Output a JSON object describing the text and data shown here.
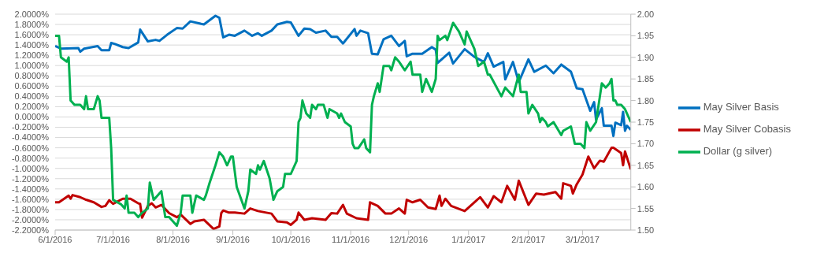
{
  "chart_data": {
    "type": "line",
    "xlim": [
      "2016-06-01",
      "2017-03-26"
    ],
    "xticks": [
      {
        "value": "2016-06-01",
        "label": "6/1/2016"
      },
      {
        "value": "2016-07-01",
        "label": "7/1/2016"
      },
      {
        "value": "2016-08-01",
        "label": "8/1/2016"
      },
      {
        "value": "2016-09-01",
        "label": "9/1/2016"
      },
      {
        "value": "2016-10-01",
        "label": "10/1/2016"
      },
      {
        "value": "2016-11-01",
        "label": "11/1/2016"
      },
      {
        "value": "2016-12-01",
        "label": "12/1/2016"
      },
      {
        "value": "2017-01-01",
        "label": "1/1/2017"
      },
      {
        "value": "2017-02-01",
        "label": "2/1/2017"
      },
      {
        "value": "2017-03-01",
        "label": "3/1/2017"
      }
    ],
    "ylim": [
      -2.2,
      2.0
    ],
    "yticks": [
      {
        "value": -2.2,
        "label": "-2.2000%"
      },
      {
        "value": -2.0,
        "label": "-2.0000%"
      },
      {
        "value": -1.8,
        "label": "-1.8000%"
      },
      {
        "value": -1.6,
        "label": "-1.6000%"
      },
      {
        "value": -1.4,
        "label": "-1.4000%"
      },
      {
        "value": -1.2,
        "label": "-1.2000%"
      },
      {
        "value": -1.0,
        "label": "-1.0000%"
      },
      {
        "value": -0.8,
        "label": "-0.8000%"
      },
      {
        "value": -0.6,
        "label": "-0.6000%"
      },
      {
        "value": -0.4,
        "label": "-0.4000%"
      },
      {
        "value": -0.2,
        "label": "-0.2000%"
      },
      {
        "value": 0,
        "label": "0.0000%"
      },
      {
        "value": 0.2,
        "label": "0.2000%"
      },
      {
        "value": 0.4,
        "label": "0.4000%"
      },
      {
        "value": 0.6,
        "label": "0.6000%"
      },
      {
        "value": 0.8,
        "label": "0.8000%"
      },
      {
        "value": 1.0,
        "label": "1.0000%"
      },
      {
        "value": 1.2,
        "label": "1.2000%"
      },
      {
        "value": 1.4,
        "label": "1.4000%"
      },
      {
        "value": 1.6,
        "label": "1.6000%"
      },
      {
        "value": 1.8,
        "label": "1.8000%"
      },
      {
        "value": 2.0,
        "label": "2.0000%"
      }
    ],
    "y2lim": [
      1.5,
      2.0
    ],
    "y2ticks": [
      {
        "value": 1.5,
        "label": "1.50"
      },
      {
        "value": 1.55,
        "label": "1.55"
      },
      {
        "value": 1.6,
        "label": "1.60"
      },
      {
        "value": 1.65,
        "label": "1.65"
      },
      {
        "value": 1.7,
        "label": "1.70"
      },
      {
        "value": 1.75,
        "label": "1.75"
      },
      {
        "value": 1.8,
        "label": "1.80"
      },
      {
        "value": 1.85,
        "label": "1.85"
      },
      {
        "value": 1.9,
        "label": "1.90"
      },
      {
        "value": 1.95,
        "label": "1.95"
      },
      {
        "value": 2.0,
        "label": "2.00"
      }
    ],
    "grid": "y",
    "legend": "right",
    "marker": "none",
    "line_style": "solid",
    "series": [
      {
        "name": "May Silver Basis",
        "color": "#0070c0",
        "x": [
          "2016-06-01",
          "2016-06-04",
          "2016-06-13",
          "2016-06-14",
          "2016-06-16",
          "2016-06-23",
          "2016-06-25",
          "2016-06-29",
          "2016-06-30",
          "2016-07-02",
          "2016-07-06",
          "2016-07-09",
          "2016-07-14",
          "2016-07-15",
          "2016-07-19",
          "2016-07-23",
          "2016-07-25",
          "2016-07-29",
          "2016-08-03",
          "2016-08-06",
          "2016-08-10",
          "2016-08-17",
          "2016-08-23",
          "2016-08-25",
          "2016-08-27",
          "2016-08-30",
          "2016-09-02",
          "2016-09-07",
          "2016-09-11",
          "2016-09-14",
          "2016-09-16",
          "2016-09-21",
          "2016-09-24",
          "2016-09-29",
          "2016-10-01",
          "2016-10-05",
          "2016-10-08",
          "2016-10-11",
          "2016-10-14",
          "2016-10-19",
          "2016-10-22",
          "2016-10-25",
          "2016-10-28",
          "2016-11-03",
          "2016-11-04",
          "2016-11-06",
          "2016-11-10",
          "2016-11-12",
          "2016-11-15",
          "2016-11-18",
          "2016-11-22",
          "2016-11-26",
          "2016-11-29",
          "2016-11-30",
          "2016-12-03",
          "2016-12-08",
          "2016-12-13",
          "2016-12-15",
          "2016-12-16",
          "2016-12-22",
          "2016-12-24",
          "2016-12-30",
          "2017-01-04",
          "2017-01-09",
          "2017-01-11",
          "2017-01-14",
          "2017-01-19",
          "2017-01-20",
          "2017-01-24",
          "2017-01-27",
          "2017-02-01",
          "2017-02-04",
          "2017-02-10",
          "2017-02-14",
          "2017-02-18",
          "2017-02-23",
          "2017-02-26",
          "2017-03-01",
          "2017-03-05",
          "2017-03-07",
          "2017-03-08",
          "2017-03-11",
          "2017-03-12",
          "2017-03-16",
          "2017-03-17",
          "2017-03-18",
          "2017-03-21",
          "2017-03-22",
          "2017-03-23",
          "2017-03-24",
          "2017-03-26"
        ],
        "values": [
          1.38,
          1.33,
          1.34,
          1.27,
          1.33,
          1.38,
          1.3,
          1.3,
          1.44,
          1.42,
          1.36,
          1.34,
          1.45,
          1.7,
          1.47,
          1.5,
          1.48,
          1.6,
          1.73,
          1.72,
          1.86,
          1.8,
          1.97,
          1.93,
          1.55,
          1.6,
          1.58,
          1.68,
          1.58,
          1.63,
          1.58,
          1.68,
          1.8,
          1.85,
          1.84,
          1.58,
          1.72,
          1.71,
          1.64,
          1.68,
          1.56,
          1.56,
          1.43,
          1.71,
          1.58,
          1.68,
          1.63,
          1.23,
          1.22,
          1.51,
          1.58,
          1.38,
          1.48,
          1.18,
          1.23,
          1.23,
          1.36,
          1.31,
          1.05,
          1.25,
          1.04,
          1.32,
          1.17,
          1.07,
          1.24,
          0.98,
          1.07,
          0.73,
          1.07,
          0.68,
          1.12,
          0.88,
          1.0,
          0.85,
          1.02,
          0.88,
          0.56,
          0.54,
          0.12,
          0.29,
          -0.05,
          0.17,
          -0.17,
          -0.17,
          -0.37,
          -0.11,
          -0.16,
          0.1,
          -0.27,
          -0.17,
          -0.25
        ]
      },
      {
        "name": "May Silver Cobasis",
        "color": "#c00000",
        "x": [
          "2016-06-01",
          "2016-06-03",
          "2016-06-08",
          "2016-06-09",
          "2016-06-10",
          "2016-06-14",
          "2016-06-17",
          "2016-06-21",
          "2016-06-25",
          "2016-06-27",
          "2016-06-29",
          "2016-07-01",
          "2016-07-06",
          "2016-07-10",
          "2016-07-14",
          "2016-07-15",
          "2016-07-16",
          "2016-07-19",
          "2016-07-21",
          "2016-07-23",
          "2016-07-26",
          "2016-07-30",
          "2016-08-03",
          "2016-08-05",
          "2016-08-10",
          "2016-08-12",
          "2016-08-17",
          "2016-08-22",
          "2016-08-25",
          "2016-08-26",
          "2016-08-27",
          "2016-08-30",
          "2016-09-02",
          "2016-09-07",
          "2016-09-10",
          "2016-09-14",
          "2016-09-21",
          "2016-09-24",
          "2016-09-29",
          "2016-10-01",
          "2016-10-04",
          "2016-10-05",
          "2016-10-08",
          "2016-10-12",
          "2016-10-19",
          "2016-10-22",
          "2016-10-25",
          "2016-10-28",
          "2016-10-30",
          "2016-11-04",
          "2016-11-10",
          "2016-11-11",
          "2016-11-15",
          "2016-11-19",
          "2016-11-22",
          "2016-11-26",
          "2016-11-29",
          "2016-11-30",
          "2016-12-03",
          "2016-12-07",
          "2016-12-11",
          "2016-12-15",
          "2016-12-17",
          "2016-12-18",
          "2016-12-20",
          "2016-12-23",
          "2016-12-30",
          "2017-01-04",
          "2017-01-07",
          "2017-01-11",
          "2017-01-14",
          "2017-01-18",
          "2017-01-21",
          "2017-01-25",
          "2017-01-27",
          "2017-02-01",
          "2017-02-05",
          "2017-02-09",
          "2017-02-15",
          "2017-02-18",
          "2017-02-19",
          "2017-02-23",
          "2017-02-24",
          "2017-02-26",
          "2017-03-01",
          "2017-03-04",
          "2017-03-07",
          "2017-03-10",
          "2017-03-12",
          "2017-03-16",
          "2017-03-17",
          "2017-03-21",
          "2017-03-22",
          "2017-03-23",
          "2017-03-26"
        ],
        "values": [
          -1.66,
          -1.66,
          -1.53,
          -1.59,
          -1.52,
          -1.56,
          -1.61,
          -1.66,
          -1.75,
          -1.73,
          -1.62,
          -1.69,
          -1.59,
          -1.59,
          -1.68,
          -1.69,
          -1.96,
          -1.73,
          -1.68,
          -1.76,
          -1.71,
          -1.87,
          -1.95,
          -1.9,
          -2.08,
          -2.03,
          -2.0,
          -2.18,
          -2.13,
          -1.87,
          -1.82,
          -1.86,
          -1.86,
          -1.88,
          -1.78,
          -1.83,
          -1.88,
          -2.03,
          -2.05,
          -2.1,
          -2.0,
          -1.86,
          -2.0,
          -1.97,
          -2.0,
          -1.87,
          -1.88,
          -1.71,
          -1.88,
          -1.97,
          -2.0,
          -1.66,
          -1.73,
          -1.88,
          -1.88,
          -1.78,
          -1.88,
          -1.61,
          -1.66,
          -1.61,
          -1.76,
          -1.79,
          -1.53,
          -1.73,
          -1.59,
          -1.73,
          -1.83,
          -1.66,
          -1.56,
          -1.76,
          -1.54,
          -1.66,
          -1.34,
          -1.61,
          -1.24,
          -1.71,
          -1.49,
          -1.51,
          -1.46,
          -1.59,
          -1.29,
          -1.34,
          -1.49,
          -1.31,
          -1.12,
          -0.77,
          -1.0,
          -0.85,
          -0.87,
          -0.6,
          -0.6,
          -0.7,
          -0.94,
          -0.67,
          -1.02
        ]
      },
      {
        "name": "Dollar (g silver)",
        "color": "#00b050",
        "axis": "y2",
        "x": [
          "2016-06-01",
          "2016-06-03",
          "2016-06-04",
          "2016-06-07",
          "2016-06-08",
          "2016-06-09",
          "2016-06-11",
          "2016-06-14",
          "2016-06-16",
          "2016-06-17",
          "2016-06-18",
          "2016-06-21",
          "2016-06-23",
          "2016-06-24",
          "2016-06-25",
          "2016-06-29",
          "2016-06-30",
          "2016-07-01",
          "2016-07-05",
          "2016-07-07",
          "2016-07-08",
          "2016-07-09",
          "2016-07-12",
          "2016-07-14",
          "2016-07-16",
          "2016-07-19",
          "2016-07-20",
          "2016-07-22",
          "2016-07-26",
          "2016-07-28",
          "2016-07-30",
          "2016-08-03",
          "2016-08-05",
          "2016-08-06",
          "2016-08-10",
          "2016-08-11",
          "2016-08-13",
          "2016-08-17",
          "2016-08-18",
          "2016-08-20",
          "2016-08-23",
          "2016-08-25",
          "2016-08-27",
          "2016-08-29",
          "2016-08-31",
          "2016-09-01",
          "2016-09-03",
          "2016-09-07",
          "2016-09-09",
          "2016-09-10",
          "2016-09-13",
          "2016-09-14",
          "2016-09-15",
          "2016-09-17",
          "2016-09-20",
          "2016-09-22",
          "2016-09-24",
          "2016-09-27",
          "2016-09-28",
          "2016-10-01",
          "2016-10-04",
          "2016-10-05",
          "2016-10-06",
          "2016-10-07",
          "2016-10-09",
          "2016-10-11",
          "2016-10-12",
          "2016-10-14",
          "2016-10-15",
          "2016-10-18",
          "2016-10-20",
          "2016-10-21",
          "2016-10-25",
          "2016-10-26",
          "2016-10-27",
          "2016-10-29",
          "2016-11-01",
          "2016-11-02",
          "2016-11-03",
          "2016-11-05",
          "2016-11-08",
          "2016-11-09",
          "2016-11-11",
          "2016-11-12",
          "2016-11-13",
          "2016-11-15",
          "2016-11-16",
          "2016-11-18",
          "2016-11-21",
          "2016-11-22",
          "2016-11-24",
          "2016-11-26",
          "2016-11-29",
          "2016-12-02",
          "2016-12-03",
          "2016-12-07",
          "2016-12-08",
          "2016-12-10",
          "2016-12-13",
          "2016-12-15",
          "2016-12-16",
          "2016-12-17",
          "2016-12-20",
          "2016-12-21",
          "2016-12-24",
          "2016-12-27",
          "2016-12-30",
          "2016-12-31",
          "2017-01-04",
          "2017-01-06",
          "2017-01-09",
          "2017-01-11",
          "2017-01-12",
          "2017-01-18",
          "2017-01-20",
          "2017-01-24",
          "2017-01-27",
          "2017-01-28",
          "2017-01-31",
          "2017-02-01",
          "2017-02-03",
          "2017-02-06",
          "2017-02-07",
          "2017-02-08",
          "2017-02-10",
          "2017-02-11",
          "2017-02-14",
          "2017-02-18",
          "2017-02-19",
          "2017-02-23",
          "2017-02-25",
          "2017-02-28",
          "2017-03-02",
          "2017-03-03",
          "2017-03-05",
          "2017-03-08",
          "2017-03-10",
          "2017-03-11",
          "2017-03-13",
          "2017-03-15",
          "2017-03-16",
          "2017-03-17",
          "2017-03-18",
          "2017-03-19",
          "2017-03-21",
          "2017-03-23",
          "2017-03-24",
          "2017-03-26"
        ],
        "values": [
          1.95,
          1.95,
          1.9,
          1.89,
          1.9,
          1.8,
          1.79,
          1.79,
          1.78,
          1.81,
          1.78,
          1.78,
          1.81,
          1.8,
          1.76,
          1.76,
          1.69,
          1.57,
          1.56,
          1.55,
          1.58,
          1.54,
          1.54,
          1.53,
          1.54,
          1.55,
          1.61,
          1.57,
          1.59,
          1.53,
          1.53,
          1.51,
          1.54,
          1.58,
          1.58,
          1.54,
          1.58,
          1.57,
          1.58,
          1.61,
          1.65,
          1.68,
          1.67,
          1.65,
          1.67,
          1.67,
          1.6,
          1.55,
          1.59,
          1.64,
          1.63,
          1.65,
          1.64,
          1.66,
          1.62,
          1.57,
          1.59,
          1.6,
          1.63,
          1.63,
          1.66,
          1.75,
          1.76,
          1.8,
          1.77,
          1.76,
          1.79,
          1.78,
          1.79,
          1.79,
          1.76,
          1.78,
          1.77,
          1.76,
          1.77,
          1.75,
          1.74,
          1.7,
          1.69,
          1.69,
          1.71,
          1.69,
          1.68,
          1.79,
          1.81,
          1.84,
          1.82,
          1.88,
          1.88,
          1.87,
          1.9,
          1.89,
          1.87,
          1.89,
          1.86,
          1.86,
          1.82,
          1.85,
          1.82,
          1.85,
          1.95,
          1.94,
          1.95,
          1.94,
          1.98,
          1.96,
          1.93,
          1.96,
          1.92,
          1.88,
          1.89,
          1.86,
          1.86,
          1.81,
          1.83,
          1.81,
          1.86,
          1.82,
          1.82,
          1.77,
          1.79,
          1.77,
          1.75,
          1.76,
          1.75,
          1.74,
          1.75,
          1.72,
          1.73,
          1.74,
          1.7,
          1.7,
          1.69,
          1.75,
          1.73,
          1.75,
          1.81,
          1.84,
          1.83,
          1.84,
          1.85,
          1.8,
          1.8,
          1.79,
          1.79,
          1.78,
          1.77,
          1.75
        ]
      }
    ]
  }
}
